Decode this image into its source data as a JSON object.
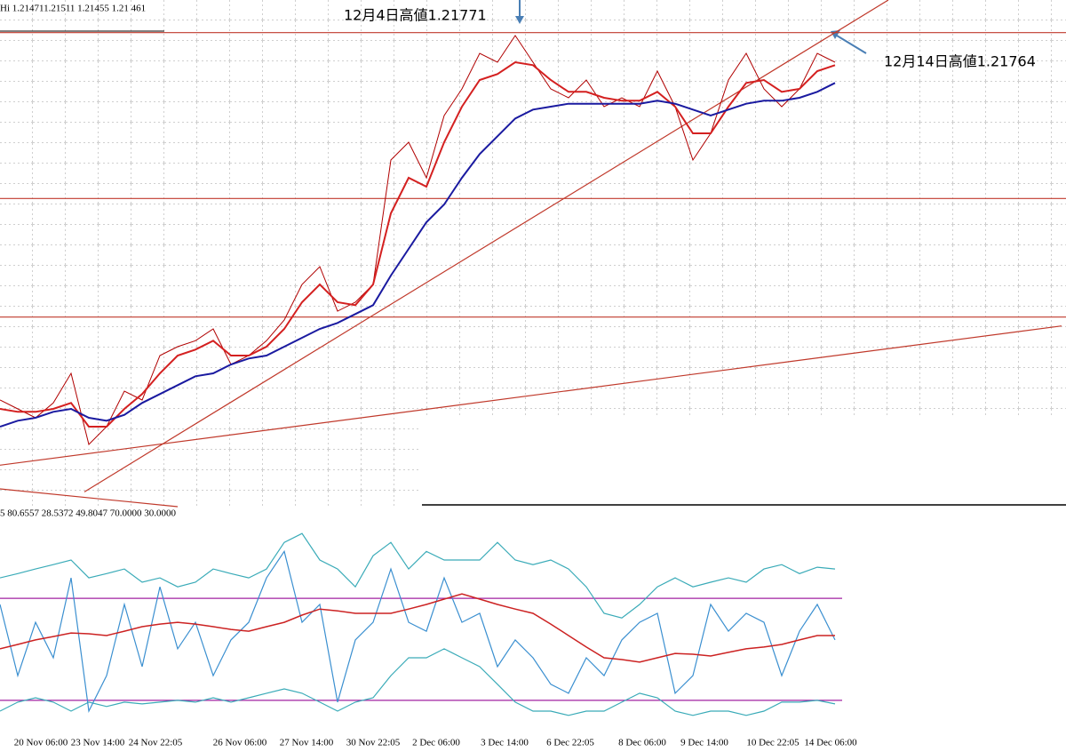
{
  "chart_data": [
    {
      "type": "line",
      "title": "Hi 1.214711.21511 1.21455 1.21 461",
      "x": [
        0,
        1,
        2,
        3,
        4,
        5,
        6,
        7,
        8,
        9,
        10,
        11,
        12,
        13,
        14,
        15,
        16,
        17,
        18,
        19,
        20,
        21,
        22,
        23,
        24,
        25,
        26,
        27,
        28,
        29,
        30,
        31,
        32,
        33,
        34,
        35,
        36,
        37,
        38,
        39,
        40,
        41,
        42,
        43,
        44,
        45,
        46,
        47
      ],
      "xlim": [
        0,
        60
      ],
      "ylim": [
        1.2017,
        1.2188
      ],
      "series": [
        {
          "color": "#b00000",
          "width": 1,
          "values": [
            1.2053,
            1.205,
            1.2047,
            1.2052,
            1.2062,
            1.2038,
            1.2044,
            1.2056,
            1.2053,
            1.2068,
            1.2071,
            1.2073,
            1.2077,
            1.2065,
            1.2068,
            1.2073,
            1.208,
            1.2092,
            1.2098,
            1.2083,
            1.2086,
            1.2092,
            1.2134,
            1.214,
            1.2128,
            1.2149,
            1.2158,
            1.217,
            1.2167,
            1.2176,
            1.2167,
            1.2158,
            1.2155,
            1.2161,
            1.2152,
            1.2155,
            1.2152,
            1.2164,
            1.2152,
            1.2134,
            1.2143,
            1.2161,
            1.217,
            1.2158,
            1.2152,
            1.2158,
            1.217,
            1.2167
          ]
        },
        {
          "color": "#d42020",
          "width": 2,
          "values": [
            1.205,
            1.2049,
            1.2049,
            1.205,
            1.2052,
            1.2044,
            1.2044,
            1.205,
            1.2055,
            1.2062,
            1.2068,
            1.207,
            1.2073,
            1.2068,
            1.2068,
            1.2071,
            1.2077,
            1.2086,
            1.2092,
            1.2086,
            1.2085,
            1.2092,
            1.2116,
            1.2128,
            1.2125,
            1.214,
            1.2152,
            1.2161,
            1.2163,
            1.2167,
            1.2166,
            1.2161,
            1.2157,
            1.2157,
            1.2155,
            1.2154,
            1.2154,
            1.2157,
            1.2152,
            1.2143,
            1.2143,
            1.2152,
            1.216,
            1.2161,
            1.2157,
            1.2158,
            1.2164,
            1.2166
          ]
        },
        {
          "color": "#1a1aa0",
          "width": 2,
          "values": [
            1.2044,
            1.2046,
            1.2047,
            1.2049,
            1.205,
            1.2047,
            1.2046,
            1.2048,
            1.2052,
            1.2055,
            1.2058,
            1.2061,
            1.2062,
            1.2065,
            1.2067,
            1.2068,
            1.2071,
            1.2074,
            1.2077,
            1.2079,
            1.2082,
            1.2085,
            1.2095,
            1.2104,
            1.2113,
            1.2119,
            1.2128,
            1.2136,
            1.2142,
            1.2148,
            1.2151,
            1.2152,
            1.2153,
            1.2153,
            1.2153,
            1.2153,
            1.2153,
            1.2154,
            1.2153,
            1.2151,
            1.2149,
            1.2151,
            1.2153,
            1.2154,
            1.2154,
            1.2155,
            1.2157,
            1.216
          ]
        }
      ],
      "levels": [
        1.2177,
        1.2121,
        1.2081
      ],
      "level_color": "#c0392b",
      "trendlines": [
        {
          "x": [
            4.75,
            50
          ],
          "values": [
            1.2022,
            1.2188
          ]
        },
        {
          "x": [
            0,
            59.75
          ],
          "values": [
            1.2031,
            1.2078
          ]
        },
        {
          "x": [
            0,
            10
          ],
          "values": [
            1.2023,
            1.2017
          ]
        }
      ],
      "trend_color": "#c0392b",
      "annotations": [
        "12月4日高値1.21771",
        "12月14日高値1.21764"
      ]
    },
    {
      "type": "line",
      "title": "5 80.6557 28.5372 49.8047 70.0000 30.0000",
      "x": [
        0,
        1,
        2,
        3,
        4,
        5,
        6,
        7,
        8,
        9,
        10,
        11,
        12,
        13,
        14,
        15,
        16,
        17,
        18,
        19,
        20,
        21,
        22,
        23,
        24,
        25,
        26,
        27,
        28,
        29,
        30,
        31,
        32,
        33,
        34,
        35,
        36,
        37,
        38,
        39,
        40,
        41,
        42,
        43,
        44,
        45,
        46,
        47
      ],
      "xlim": [
        0,
        60
      ],
      "ylim": [
        0,
        100
      ],
      "xticks": [
        {
          "value": 2.3,
          "label": "20 Nov 06:00"
        },
        {
          "value": 5.5,
          "label": "23 Nov 14:00"
        },
        {
          "value": 8.75,
          "label": "24 Nov 22:05"
        },
        {
          "value": 13.5,
          "label": "26  Nov 06:00"
        },
        {
          "value": 17.25,
          "label": "27 Nov 14:00"
        },
        {
          "value": 21,
          "label": "30 Nov 22:05"
        },
        {
          "value": 24.55,
          "label": "2 Dec 06:00"
        },
        {
          "value": 28.4,
          "label": "3 Dec 14:00"
        },
        {
          "value": 32.1,
          "label": "6 Dec 22:05"
        },
        {
          "value": 36.15,
          "label": "8 Dec 06:00"
        },
        {
          "value": 39.65,
          "label": "9 Dec 14:00"
        },
        {
          "value": 43.5,
          "label": "10 Dec 22:05"
        },
        {
          "value": 46.75,
          "label": "14 Dec 06:00"
        }
      ],
      "series": [
        {
          "color": "#3aabb8",
          "width": 1.2,
          "values": [
            78.0,
            79.7,
            81.5,
            83.2,
            85.0,
            78.0,
            79.7,
            81.5,
            76.3,
            78.0,
            74.5,
            76.3,
            81.5,
            79.7,
            78.0,
            81.5,
            91.9,
            95.4,
            85.0,
            81.5,
            74.5,
            86.7,
            91.9,
            81.5,
            88.4,
            85.0,
            85.0,
            85.0,
            91.9,
            85.0,
            83.2,
            85.0,
            81.5,
            74.5,
            64.1,
            62.3,
            67.6,
            74.5,
            78.0,
            74.5,
            76.3,
            78.0,
            76.3,
            81.5,
            83.2,
            79.7,
            82.2,
            81.5
          ]
        },
        {
          "color": "#3aabb8",
          "width": 1.2,
          "values": [
            25.8,
            29.3,
            31.0,
            29.3,
            25.8,
            29.3,
            27.6,
            29.3,
            28.6,
            29.3,
            30.0,
            29.3,
            31.0,
            29.3,
            31.0,
            32.8,
            34.5,
            32.8,
            29.3,
            25.8,
            29.3,
            31.0,
            39.7,
            46.7,
            46.7,
            50.2,
            46.7,
            43.2,
            36.3,
            29.3,
            25.8,
            25.8,
            24.1,
            25.8,
            25.8,
            29.3,
            32.8,
            31.0,
            25.8,
            24.1,
            25.8,
            25.8,
            24.1,
            25.8,
            29.3,
            29.3,
            30.0,
            28.6
          ]
        },
        {
          "color": "#3a8fd0",
          "width": 1.2,
          "values": [
            67.6,
            39.7,
            60.6,
            46.7,
            78.0,
            25.8,
            39.7,
            67.6,
            43.2,
            74.5,
            50.2,
            60.6,
            39.7,
            53.7,
            60.6,
            78.0,
            88.4,
            60.6,
            67.6,
            29.3,
            53.7,
            60.6,
            81.5,
            60.6,
            57.1,
            78.0,
            60.6,
            64.1,
            43.2,
            53.7,
            46.7,
            36.3,
            32.8,
            46.7,
            39.7,
            53.7,
            60.6,
            64.1,
            32.8,
            39.7,
            67.6,
            57.1,
            64.1,
            60.6,
            39.7,
            57.1,
            67.6,
            53.7
          ]
        },
        {
          "color": "#cc2222",
          "width": 1.5,
          "values": [
            50.2,
            51.9,
            53.7,
            55.0,
            56.4,
            56.1,
            55.4,
            57.1,
            58.9,
            59.9,
            60.6,
            59.9,
            58.9,
            57.8,
            57.1,
            58.9,
            60.6,
            63.4,
            65.8,
            65.1,
            64.1,
            64.1,
            64.1,
            65.8,
            67.6,
            69.7,
            71.7,
            69.7,
            67.6,
            65.8,
            64.1,
            59.9,
            55.4,
            50.9,
            46.7,
            46.0,
            45.0,
            46.7,
            48.4,
            48.1,
            47.4,
            48.8,
            50.2,
            50.9,
            51.9,
            53.7,
            55.4,
            55.4
          ]
        }
      ],
      "levels": [
        70,
        30
      ],
      "level_color": "#a020a0"
    }
  ]
}
